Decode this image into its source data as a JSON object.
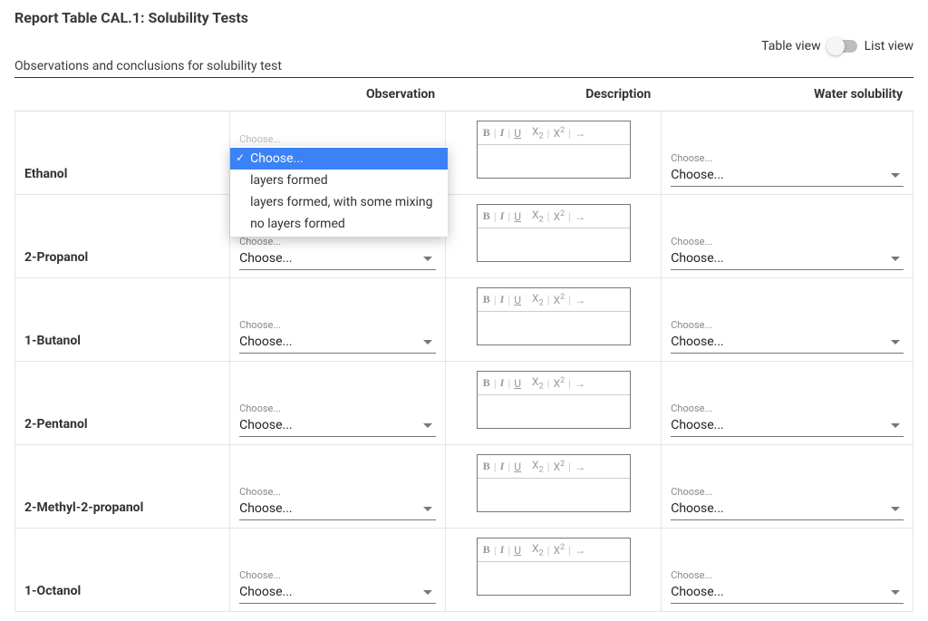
{
  "title": "Report Table CAL.1: Solubility Tests",
  "subtitle": "Observations and conclusions for solubility test",
  "viewToggle": {
    "leftLabel": "Table view",
    "rightLabel": "List view",
    "state": "table"
  },
  "columns": {
    "label": "",
    "observation": "Observation",
    "description": "Description",
    "water": "Water solubility"
  },
  "selectPlaceholderSmall": "Choose...",
  "selectPlaceholder": "Choose...",
  "rte": {
    "bold": "B",
    "italic": "I",
    "underline": "U",
    "sub": "X",
    "subIdx": "2",
    "sup": "X",
    "supIdx": "2",
    "arrow": "→",
    "sep": "|"
  },
  "observationOptions": [
    "Choose...",
    "layers formed",
    "layers formed, with some mixing",
    "no layers formed"
  ],
  "dropdownSelectedIndex": 0,
  "rows": [
    {
      "label": "Ethanol",
      "observation": "Choose...",
      "water": "Choose...",
      "dropdownOpen": true
    },
    {
      "label": "2-Propanol",
      "observation": "Choose...",
      "water": "Choose..."
    },
    {
      "label": "1-Butanol",
      "observation": "Choose...",
      "water": "Choose..."
    },
    {
      "label": "2-Pentanol",
      "observation": "Choose...",
      "water": "Choose..."
    },
    {
      "label": "2-Methyl-2-propanol",
      "observation": "Choose...",
      "water": "Choose..."
    },
    {
      "label": "1-Octanol",
      "observation": "Choose...",
      "water": "Choose..."
    }
  ]
}
